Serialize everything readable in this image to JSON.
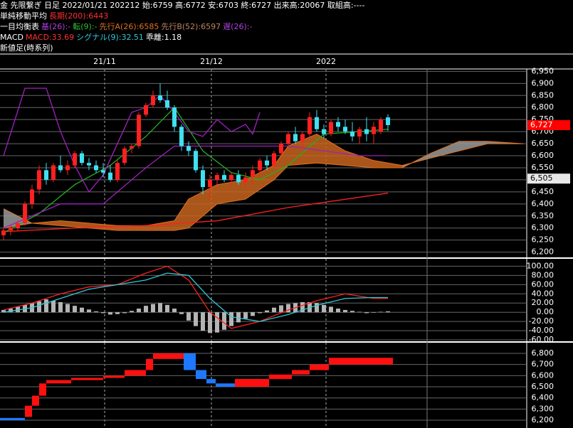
{
  "header": {
    "line1": "金 先限繋ぎ 日足 2022/01/21 202212 始:6759 高:6772 安:6703 終:6727 出来高:20067 取組高:----",
    "ma_label": "単純移動平均",
    "ma_long": "長期(200):6443",
    "ichimoku_label": "一目均衡表",
    "kijun": "基(26):-",
    "tenkan": "転(9):-",
    "span_a": "先行A(26):6585",
    "span_b": "先行B(52):6597",
    "chikou": "遅(26):-",
    "macd_label": "MACD",
    "macd": "MACD:33.69",
    "signal": "シグナル(9):32.51",
    "divergence": "乖離:1.18",
    "shinne": "新値足(時系列)"
  },
  "chart_data": [
    {
      "type": "candlestick",
      "up_color": "#ff2020",
      "down_color": "#40e0f0",
      "grid": true,
      "xticks": [
        {
          "value": 14.2,
          "label": "21/11"
        },
        {
          "value": 29.2,
          "label": "21/12"
        },
        {
          "value": 45.3,
          "label": "2022"
        }
      ],
      "ylim": [
        6190,
        6960
      ],
      "yticks": [
        {
          "value": 6200,
          "label": "6,200"
        },
        {
          "value": 6250,
          "label": "6,250"
        },
        {
          "value": 6300,
          "label": "6,300"
        },
        {
          "value": 6350,
          "label": "6,350"
        },
        {
          "value": 6400,
          "label": "6,400"
        },
        {
          "value": 6450,
          "label": "6,450"
        },
        {
          "value": 6500,
          "label": "6,500"
        },
        {
          "value": 6550,
          "label": "6,550"
        },
        {
          "value": 6600,
          "label": "6,600"
        },
        {
          "value": 6650,
          "label": "6,650"
        },
        {
          "value": 6700,
          "label": "6,700"
        },
        {
          "value": 6750,
          "label": "6,750"
        },
        {
          "value": 6800,
          "label": "6,800"
        },
        {
          "value": 6850,
          "label": "6,850"
        },
        {
          "value": 6900,
          "label": "6,900"
        },
        {
          "value": 6950,
          "label": "6,950"
        }
      ],
      "candles": [
        [
          6270,
          6300,
          6250,
          6290
        ],
        [
          6290,
          6310,
          6270,
          6300
        ],
        [
          6300,
          6330,
          6290,
          6320
        ],
        [
          6320,
          6410,
          6310,
          6400
        ],
        [
          6400,
          6480,
          6380,
          6460
        ],
        [
          6460,
          6560,
          6440,
          6540
        ],
        [
          6540,
          6570,
          6480,
          6500
        ],
        [
          6500,
          6570,
          6490,
          6560
        ],
        [
          6560,
          6600,
          6530,
          6540
        ],
        [
          6540,
          6580,
          6520,
          6560
        ],
        [
          6560,
          6620,
          6550,
          6610
        ],
        [
          6610,
          6620,
          6560,
          6570
        ],
        [
          6570,
          6590,
          6540,
          6560
        ],
        [
          6560,
          6580,
          6530,
          6540
        ],
        [
          6540,
          6570,
          6510,
          6530
        ],
        [
          6530,
          6560,
          6490,
          6500
        ],
        [
          6500,
          6580,
          6490,
          6570
        ],
        [
          6570,
          6640,
          6560,
          6630
        ],
        [
          6630,
          6650,
          6610,
          6640
        ],
        [
          6640,
          6780,
          6630,
          6770
        ],
        [
          6770,
          6820,
          6760,
          6810
        ],
        [
          6810,
          6870,
          6800,
          6850
        ],
        [
          6850,
          6900,
          6820,
          6830
        ],
        [
          6830,
          6870,
          6790,
          6800
        ],
        [
          6800,
          6810,
          6700,
          6720
        ],
        [
          6720,
          6730,
          6620,
          6640
        ],
        [
          6640,
          6660,
          6600,
          6620
        ],
        [
          6620,
          6630,
          6530,
          6540
        ],
        [
          6540,
          6560,
          6440,
          6470
        ],
        [
          6470,
          6520,
          6420,
          6500
        ],
        [
          6500,
          6530,
          6480,
          6520
        ],
        [
          6520,
          6540,
          6490,
          6500
        ],
        [
          6500,
          6530,
          6470,
          6520
        ],
        [
          6520,
          6540,
          6480,
          6490
        ],
        [
          6490,
          6530,
          6470,
          6510
        ],
        [
          6510,
          6560,
          6480,
          6540
        ],
        [
          6540,
          6590,
          6520,
          6580
        ],
        [
          6580,
          6600,
          6540,
          6560
        ],
        [
          6560,
          6620,
          6550,
          6610
        ],
        [
          6610,
          6660,
          6600,
          6650
        ],
        [
          6650,
          6700,
          6640,
          6690
        ],
        [
          6690,
          6720,
          6650,
          6660
        ],
        [
          6660,
          6700,
          6630,
          6690
        ],
        [
          6690,
          6780,
          6680,
          6760
        ],
        [
          6760,
          6790,
          6700,
          6710
        ],
        [
          6710,
          6730,
          6670,
          6690
        ],
        [
          6690,
          6750,
          6680,
          6740
        ],
        [
          6740,
          6760,
          6700,
          6720
        ],
        [
          6720,
          6750,
          6690,
          6700
        ],
        [
          6700,
          6740,
          6660,
          6680
        ],
        [
          6680,
          6720,
          6650,
          6710
        ],
        [
          6710,
          6760,
          6660,
          6690
        ],
        [
          6690,
          6740,
          6650,
          6720
        ],
        [
          6700,
          6760,
          6690,
          6750
        ],
        [
          6759,
          6772,
          6703,
          6727
        ]
      ],
      "cloud": {
        "up_color": "#c8641e",
        "down_color": "#9a9a9a",
        "line_color": "#e07020",
        "x": [
          0,
          4,
          8,
          12,
          16,
          20,
          24,
          26,
          30,
          34,
          38,
          40,
          44,
          48,
          52,
          56,
          60,
          64,
          68,
          73
        ],
        "span_a": [
          6300,
          6320,
          6330,
          6320,
          6310,
          6310,
          6330,
          6420,
          6480,
          6500,
          6560,
          6640,
          6690,
          6620,
          6580,
          6560,
          6590,
          6620,
          6650,
          6650
        ],
        "span_b": [
          6380,
          6320,
          6310,
          6300,
          6290,
          6290,
          6290,
          6300,
          6400,
          6420,
          6500,
          6560,
          6570,
          6560,
          6550,
          6550,
          6610,
          6660,
          6660,
          6650
        ]
      },
      "lines": [
        {
          "color": "#ff2020",
          "x": [
            0,
            10,
            20,
            30,
            40,
            54
          ],
          "values": [
            6285,
            6300,
            6310,
            6330,
            6385,
            6445
          ]
        },
        {
          "color": "#20b020",
          "x": [
            0,
            5,
            10,
            15,
            20,
            24,
            28,
            32,
            36,
            40,
            45,
            50,
            54
          ],
          "values": [
            6280,
            6360,
            6480,
            6560,
            6680,
            6800,
            6620,
            6530,
            6500,
            6560,
            6690,
            6700,
            6710
          ]
        },
        {
          "color": "#a020c0",
          "x": [
            0,
            8,
            14,
            20,
            24,
            30,
            40,
            50,
            54
          ],
          "values": [
            6300,
            6400,
            6400,
            6550,
            6640,
            6640,
            6640,
            6600,
            6600
          ]
        },
        {
          "color": "#a020c0",
          "x": [
            0,
            3,
            6,
            8,
            10,
            12,
            14,
            16,
            18,
            20,
            22,
            24,
            26,
            28,
            30,
            32,
            34,
            35,
            36
          ],
          "values": [
            6600,
            6880,
            6880,
            6700,
            6560,
            6450,
            6520,
            6650,
            6780,
            6800,
            6850,
            6780,
            6700,
            6680,
            6750,
            6700,
            6730,
            6690,
            6780
          ]
        }
      ],
      "price_marks": [
        {
          "value": 6727,
          "label": "6,727",
          "color": "#ff0000",
          "text_color": "#ffffff"
        },
        {
          "value": 6505,
          "label": "6,505",
          "color": "#e8e8e8",
          "text_color": "#000000"
        }
      ]
    },
    {
      "type": "macd",
      "grid": true,
      "ylim": [
        -63,
        113
      ],
      "yticks": [
        {
          "value": -60,
          "label": "-60.00"
        },
        {
          "value": -40,
          "label": "-40.00"
        },
        {
          "value": -20,
          "label": "-20.00"
        },
        {
          "value": 0,
          "label": "0.00"
        },
        {
          "value": 20,
          "label": "20.00"
        },
        {
          "value": 40,
          "label": "40.00"
        },
        {
          "value": 60,
          "label": "60.00"
        },
        {
          "value": 80,
          "label": "80.00"
        },
        {
          "value": 100,
          "label": "100.00"
        }
      ],
      "histogram": {
        "color": "#b4b4b4",
        "values": [
          5,
          8,
          12,
          16,
          20,
          24,
          28,
          25,
          22,
          18,
          14,
          10,
          6,
          2,
          -2,
          -5,
          -4,
          -2,
          3,
          8,
          14,
          18,
          20,
          16,
          8,
          -4,
          -18,
          -30,
          -40,
          -45,
          -44,
          -38,
          -30,
          -22,
          -14,
          -8,
          -2,
          4,
          10,
          15,
          18,
          20,
          22,
          22,
          20,
          16,
          12,
          8,
          5,
          3,
          1,
          -2,
          -1,
          1,
          2
        ]
      },
      "lines": [
        {
          "color": "#ff2020",
          "x": [
            0,
            4,
            8,
            12,
            16,
            20,
            23,
            26,
            29,
            32,
            36,
            40,
            44,
            48,
            52,
            54
          ],
          "values": [
            5,
            20,
            40,
            55,
            60,
            85,
            100,
            70,
            0,
            -35,
            -20,
            5,
            25,
            40,
            30,
            30
          ]
        },
        {
          "color": "#30c8d8",
          "x": [
            0,
            4,
            8,
            12,
            16,
            20,
            23,
            26,
            29,
            32,
            36,
            40,
            44,
            48,
            52,
            54
          ],
          "values": [
            0,
            10,
            30,
            50,
            60,
            70,
            85,
            80,
            30,
            -10,
            -20,
            -5,
            15,
            30,
            32,
            32
          ]
        }
      ]
    },
    {
      "type": "bricks",
      "grid": true,
      "up_color": "#ff1010",
      "down_color": "#1e78ff",
      "ylim": [
        6130,
        6883
      ],
      "yticks": [
        {
          "value": 6200,
          "label": "6,200"
        },
        {
          "value": 6300,
          "label": "6,300"
        },
        {
          "value": 6400,
          "label": "6,400"
        },
        {
          "value": 6500,
          "label": "6,500"
        },
        {
          "value": 6600,
          "label": "6,600"
        },
        {
          "value": 6700,
          "label": "6,700"
        },
        {
          "value": 6800,
          "label": "6,800"
        }
      ],
      "bricks": [
        {
          "x0": -0.5,
          "x1": 3,
          "open": 6220,
          "close": 6200
        },
        {
          "x0": 3,
          "x1": 4,
          "open": 6230,
          "close": 6330
        },
        {
          "x0": 4,
          "x1": 5,
          "open": 6330,
          "close": 6420
        },
        {
          "x0": 5,
          "x1": 6,
          "open": 6420,
          "close": 6530
        },
        {
          "x0": 6,
          "x1": 9.5,
          "open": 6530,
          "close": 6560
        },
        {
          "x0": 9.5,
          "x1": 14,
          "open": 6560,
          "close": 6580
        },
        {
          "x0": 14,
          "x1": 17,
          "open": 6580,
          "close": 6600
        },
        {
          "x0": 17,
          "x1": 20,
          "open": 6600,
          "close": 6650
        },
        {
          "x0": 20,
          "x1": 21,
          "open": 6650,
          "close": 6750
        },
        {
          "x0": 21,
          "x1": 25.3,
          "open": 6750,
          "close": 6800
        },
        {
          "x0": 25.3,
          "x1": 27,
          "open": 6800,
          "close": 6650
        },
        {
          "x0": 27,
          "x1": 28.5,
          "open": 6650,
          "close": 6570
        },
        {
          "x0": 28.5,
          "x1": 29.8,
          "open": 6570,
          "close": 6530
        },
        {
          "x0": 29.8,
          "x1": 32.5,
          "open": 6530,
          "close": 6500
        },
        {
          "x0": 32.5,
          "x1": 37.3,
          "open": 6500,
          "close": 6570
        },
        {
          "x0": 37.3,
          "x1": 40.5,
          "open": 6570,
          "close": 6610
        },
        {
          "x0": 40.5,
          "x1": 43,
          "open": 6610,
          "close": 6650
        },
        {
          "x0": 43,
          "x1": 45.7,
          "open": 6650,
          "close": 6700
        },
        {
          "x0": 45.7,
          "x1": 54.7,
          "open": 6700,
          "close": 6760
        }
      ]
    }
  ]
}
